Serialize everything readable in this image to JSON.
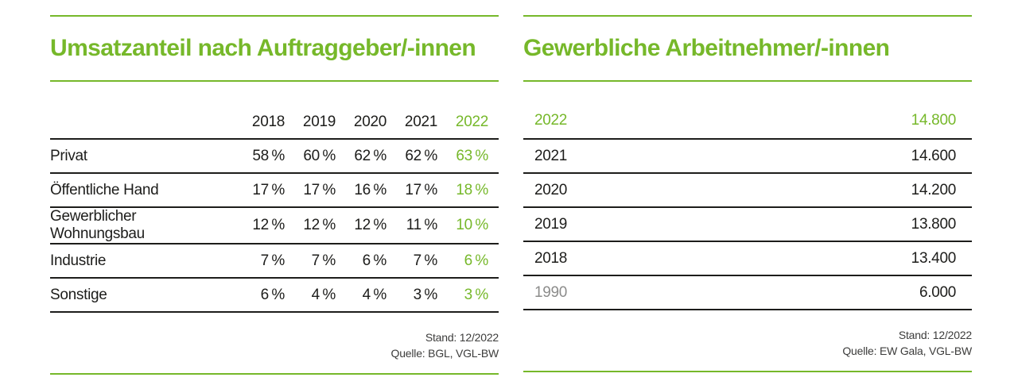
{
  "colors": {
    "accent_green": "#76b82a",
    "text_dark": "#1d1d1b",
    "muted_gray": "#8c8c8b"
  },
  "left_table": {
    "title": "Umsatzanteil nach Auftraggeber/-innen",
    "columns": [
      "2018",
      "2019",
      "2020",
      "2021",
      "2022"
    ],
    "rows": [
      {
        "label": "Privat",
        "values": [
          "58 %",
          "60 %",
          "62 %",
          "62 %",
          "63 %"
        ]
      },
      {
        "label": "Öffentliche Hand",
        "values": [
          "17 %",
          "17 %",
          "16 %",
          "17 %",
          "18 %"
        ]
      },
      {
        "label": "Gewerblicher Wohnungsbau",
        "values": [
          "12 %",
          "12 %",
          "12 %",
          "11 %",
          "10 %"
        ]
      },
      {
        "label": "Industrie",
        "values": [
          "7 %",
          "7 %",
          "6 %",
          "7 %",
          "6 %"
        ]
      },
      {
        "label": "Sonstige",
        "values": [
          "6 %",
          "4 %",
          "4 %",
          "3 %",
          "3 %"
        ]
      }
    ],
    "footer": {
      "stand": "Stand: 12/2022",
      "quelle": "Quelle: BGL, VGL-BW"
    }
  },
  "right_table": {
    "title": "Gewerbliche Arbeitnehmer/-innen",
    "rows": [
      {
        "label": "2022",
        "value": "14.800",
        "highlight": true
      },
      {
        "label": "2021",
        "value": "14.600"
      },
      {
        "label": "2020",
        "value": "14.200"
      },
      {
        "label": "2019",
        "value": "13.800"
      },
      {
        "label": "2018",
        "value": "13.400"
      },
      {
        "label": "1990",
        "value": "6.000",
        "muted": true
      }
    ],
    "footer": {
      "stand": "Stand: 12/2022",
      "quelle": "Quelle: EW Gala, VGL-BW"
    }
  },
  "chart_data": [
    {
      "type": "table",
      "title": "Umsatzanteil nach Auftraggeber/-innen",
      "columns": [
        "2018",
        "2019",
        "2020",
        "2021",
        "2022"
      ],
      "unit": "%",
      "series": [
        {
          "name": "Privat",
          "values": [
            58,
            60,
            62,
            62,
            63
          ]
        },
        {
          "name": "Öffentliche Hand",
          "values": [
            17,
            17,
            16,
            17,
            18
          ]
        },
        {
          "name": "Gewerblicher Wohnungsbau",
          "values": [
            12,
            12,
            12,
            11,
            10
          ]
        },
        {
          "name": "Industrie",
          "values": [
            7,
            7,
            6,
            7,
            6
          ]
        },
        {
          "name": "Sonstige",
          "values": [
            6,
            4,
            4,
            3,
            3
          ]
        }
      ],
      "stand": "12/2022",
      "quelle": "BGL, VGL-BW"
    },
    {
      "type": "table",
      "title": "Gewerbliche Arbeitnehmer/-innen",
      "categories": [
        "2022",
        "2021",
        "2020",
        "2019",
        "2018",
        "1990"
      ],
      "values": [
        14800,
        14600,
        14200,
        13800,
        13400,
        6000
      ],
      "stand": "12/2022",
      "quelle": "EW Gala, VGL-BW"
    }
  ]
}
